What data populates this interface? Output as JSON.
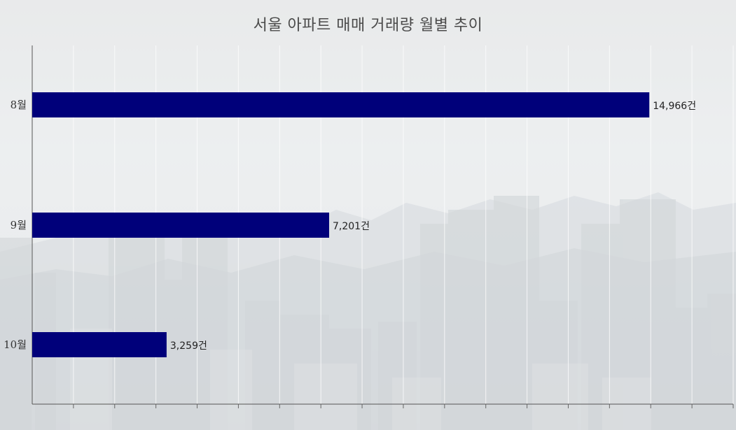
{
  "chart_data": {
    "type": "bar",
    "orientation": "horizontal",
    "title": "서울 아파트 매매 거래량 월별 추이",
    "categories": [
      "8월",
      "9월",
      "10월"
    ],
    "values": [
      14966,
      7201,
      3259
    ],
    "value_labels": [
      "14,966건",
      "7,201건",
      "3,259건"
    ],
    "xlim": [
      0,
      17000
    ],
    "x_tick_step": 1000,
    "xlabel": "",
    "ylabel": "",
    "grid": true,
    "legend": "none",
    "bar_color": "#00007a"
  }
}
